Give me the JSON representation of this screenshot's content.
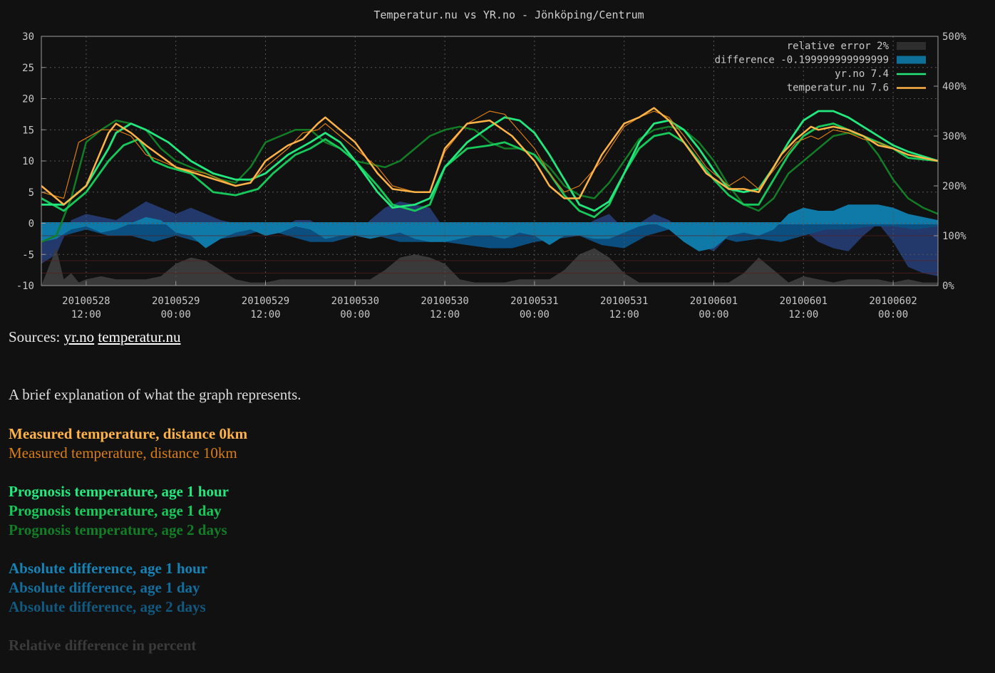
{
  "chart_data": {
    "type": "line",
    "title": "Temperatur.nu vs YR.no - Jönköping/Centrum",
    "y_left": {
      "min": -10,
      "max": 30,
      "ticks": [
        30,
        25,
        20,
        15,
        10,
        5,
        0,
        -5,
        -10
      ]
    },
    "y_right": {
      "min": 0,
      "max": 500,
      "ticks": [
        "500%",
        "400%",
        "300%",
        "200%",
        "100%",
        "0%"
      ]
    },
    "x_range_hours": [
      0,
      120
    ],
    "x_ticks": [
      {
        "date": "20100528",
        "time": "12:00"
      },
      {
        "date": "20100529",
        "time": "00:00"
      },
      {
        "date": "20100529",
        "time": "12:00"
      },
      {
        "date": "20100530",
        "time": "00:00"
      },
      {
        "date": "20100530",
        "time": "12:00"
      },
      {
        "date": "20100531",
        "time": "00:00"
      },
      {
        "date": "20100531",
        "time": "12:00"
      },
      {
        "date": "20100601",
        "time": "00:00"
      },
      {
        "date": "20100601",
        "time": "12:00"
      },
      {
        "date": "20100602",
        "time": "00:00"
      }
    ],
    "grid": true,
    "legend_position": "top-right",
    "legend": [
      {
        "label": "relative error 2%",
        "color": "#2e2e2e",
        "kind": "box"
      },
      {
        "label": "difference -0.199999999999999",
        "color": "#0e6f99",
        "kind": "box"
      },
      {
        "label": "yr.no 7.4",
        "color": "#22e87e",
        "kind": "line"
      },
      {
        "label": "temperatur.nu 7.6",
        "color": "#ffb347",
        "kind": "line"
      }
    ],
    "series": [
      {
        "name": "temperatur.nu",
        "color": "#ffb347",
        "width": 2.5,
        "x": [
          0,
          3,
          6,
          9,
          10,
          12,
          14,
          18,
          22,
          26,
          28,
          30,
          33,
          35,
          37,
          38,
          40,
          42,
          45,
          47,
          50,
          52,
          54,
          57,
          60,
          63,
          66,
          68,
          70,
          72,
          75,
          78,
          80,
          82,
          84,
          86,
          89,
          92,
          94,
          96,
          99,
          101,
          103,
          104,
          106,
          108,
          110,
          112,
          114,
          116,
          120
        ],
        "y": [
          6,
          3,
          6,
          14.5,
          16,
          14.5,
          12.5,
          9,
          7.5,
          6,
          6.5,
          10,
          12.5,
          13.5,
          16,
          17,
          15,
          13,
          8,
          5.5,
          5,
          5,
          12,
          16,
          16.5,
          14,
          10,
          6,
          4,
          4,
          11,
          16,
          17,
          18.5,
          16.5,
          13,
          8,
          5.5,
          5.5,
          5,
          11,
          13.5,
          15.5,
          15,
          15.5,
          15,
          14,
          12.5,
          12,
          11,
          10
        ]
      },
      {
        "name": "temperatur.nu, distance 10km",
        "color": "#d97e12",
        "width": 1.2,
        "x": [
          0,
          3,
          5,
          8,
          10,
          12,
          14,
          18,
          22,
          26,
          28,
          30,
          33,
          35,
          37,
          38,
          40,
          42,
          45,
          47,
          50,
          52,
          54,
          57,
          60,
          62,
          66,
          68,
          70,
          72,
          75,
          78,
          80,
          82,
          84,
          86,
          89,
          92,
          94,
          96,
          99,
          101,
          103,
          104,
          106,
          108,
          110,
          112,
          114,
          116,
          120
        ],
        "y": [
          5,
          4,
          13,
          15,
          15,
          14,
          11,
          9,
          8,
          6,
          6.5,
          9,
          12,
          14.5,
          15,
          16,
          14,
          12,
          9,
          6,
          5,
          5,
          11.5,
          16,
          18,
          17.5,
          12,
          8,
          5,
          6,
          10,
          15.5,
          17,
          18,
          17,
          14,
          9,
          6,
          7.5,
          5.5,
          10,
          13,
          14,
          13.5,
          15,
          14.5,
          13.5,
          13,
          12,
          11,
          10
        ]
      },
      {
        "name": "yr.no, age 1 hour",
        "color": "#22e87e",
        "width": 2.8,
        "x": [
          0,
          3,
          6,
          9,
          10,
          12,
          14,
          17,
          20,
          23,
          26,
          28,
          30,
          33,
          36,
          38,
          40,
          42,
          45,
          47,
          50,
          52,
          54,
          57,
          60,
          62,
          64,
          66,
          68,
          70,
          72,
          74,
          76,
          78,
          80,
          82,
          84,
          86,
          88,
          90,
          92,
          94,
          96,
          98,
          100,
          102,
          104,
          106,
          108,
          110,
          112,
          114,
          116,
          120
        ],
        "y": [
          3,
          3,
          6,
          12,
          14.5,
          16,
          15,
          13,
          10,
          8,
          7,
          7,
          8,
          11,
          13,
          14.5,
          13,
          10,
          5,
          2.5,
          3,
          4,
          9,
          13,
          15.5,
          17,
          16.5,
          14.5,
          11,
          7,
          3,
          2,
          3.5,
          8,
          13,
          16,
          16.5,
          15,
          12,
          8.5,
          5.5,
          5,
          5.5,
          9,
          13,
          16.5,
          18,
          18,
          17,
          15.5,
          14,
          12.5,
          11.5,
          10
        ]
      },
      {
        "name": "yr.no, age 1 day",
        "color": "#16c95a",
        "width": 2.8,
        "x": [
          0,
          3,
          6,
          9,
          11,
          13,
          15,
          17,
          20,
          23,
          26,
          29,
          31,
          34,
          36,
          38,
          40,
          42,
          45,
          47,
          50,
          52,
          54,
          57,
          60,
          62,
          64,
          66,
          68,
          70,
          72,
          74,
          76,
          78,
          80,
          82,
          84,
          86,
          88,
          90,
          92,
          94,
          96,
          98,
          100,
          102,
          104,
          106,
          108,
          110,
          112,
          114,
          116,
          120
        ],
        "y": [
          4,
          2,
          5,
          10,
          12.5,
          13.5,
          10,
          9,
          8,
          5,
          4.5,
          5.5,
          8,
          11,
          12,
          13.5,
          12,
          10,
          6,
          3,
          2,
          3,
          9,
          12,
          12.5,
          13,
          12,
          11,
          8,
          4.5,
          2,
          1,
          3,
          8,
          12,
          14,
          14.5,
          13,
          10,
          7,
          4.5,
          3,
          3,
          7,
          11,
          14,
          15.5,
          16,
          15,
          14,
          13,
          12,
          10.5,
          10
        ]
      },
      {
        "name": "yr.no, age 2 days",
        "color": "#127d26",
        "width": 2.5,
        "x": [
          0,
          2,
          4,
          6,
          8,
          10,
          12,
          14,
          16,
          18,
          20,
          22,
          24,
          26,
          28,
          30,
          32,
          34,
          36,
          38,
          40,
          42,
          44,
          46,
          48,
          50,
          52,
          54,
          56,
          58,
          60,
          62,
          64,
          66,
          68,
          70,
          72,
          74,
          76,
          78,
          80,
          82,
          84,
          86,
          88,
          90,
          92,
          94,
          96,
          98,
          100,
          102,
          104,
          106,
          108,
          110,
          112,
          114,
          116,
          118,
          120
        ],
        "y": [
          -3,
          -2,
          4,
          13,
          15,
          16.5,
          16,
          15,
          12,
          10,
          9,
          8,
          7,
          6.5,
          9,
          13,
          14,
          15,
          15,
          13,
          12,
          10,
          9.5,
          9,
          10,
          12,
          14,
          15,
          15.5,
          15,
          13,
          12,
          12,
          11,
          9,
          6,
          4.5,
          4,
          6.5,
          10,
          13.5,
          15,
          15.5,
          15,
          13,
          10,
          6,
          3,
          2,
          4,
          8,
          10,
          12,
          14,
          14.5,
          14,
          11,
          7,
          4,
          2.5,
          1.5
        ]
      }
    ],
    "areas": [
      {
        "name": "absolute difference, age 2 days",
        "color": "#24396b",
        "x": [
          0,
          2,
          4,
          6,
          8,
          10,
          12,
          14,
          16,
          18,
          20,
          22,
          24,
          26,
          28,
          30,
          32,
          34,
          36,
          38,
          40,
          42,
          44,
          46,
          48,
          50,
          52,
          54,
          56,
          58,
          60,
          62,
          64,
          66,
          68,
          70,
          72,
          74,
          76,
          78,
          80,
          82,
          84,
          86,
          88,
          90,
          92,
          94,
          96,
          98,
          100,
          102,
          104,
          106,
          108,
          110,
          112,
          114,
          116,
          118,
          120
        ],
        "y": [
          -6.5,
          -5,
          0.5,
          1.5,
          1,
          0.5,
          2,
          3.5,
          2.5,
          1.5,
          2.5,
          1.5,
          0.5,
          0,
          -1,
          -1.5,
          -1,
          0.5,
          0.5,
          -1,
          -1,
          -2,
          0.5,
          2.5,
          3.5,
          3,
          2.5,
          -1,
          -1.5,
          -1,
          -2.5,
          -2,
          -1.5,
          -3,
          -2.5,
          -1.5,
          -1,
          0.5,
          1.5,
          -1,
          0,
          1.5,
          0.5,
          -1.5,
          -3.5,
          -4.5,
          -2,
          -2,
          -2,
          -1.5,
          -1,
          -1,
          -3,
          -4,
          -4.5,
          -2,
          0,
          -3,
          -7,
          -8,
          -8.5
        ]
      },
      {
        "name": "absolute difference, age 1 day",
        "color": "#0b4f80",
        "x": [
          0,
          3,
          6,
          9,
          12,
          15,
          18,
          21,
          24,
          27,
          30,
          33,
          36,
          39,
          42,
          45,
          48,
          51,
          54,
          57,
          60,
          63,
          66,
          69,
          72,
          75,
          78,
          81,
          84,
          87,
          90,
          93,
          96,
          99,
          102,
          105,
          108,
          111,
          114,
          117,
          120
        ],
        "y": [
          -1,
          -2,
          -1,
          -2,
          -2,
          -3,
          -2,
          -3,
          -2.5,
          -2,
          -1,
          -2,
          -3,
          -3,
          -2,
          -2,
          -3,
          -3,
          -3,
          -3.5,
          -4,
          -4,
          -3,
          -2.5,
          -2,
          -3.5,
          -4,
          -2,
          -1,
          -1.5,
          -2,
          -3,
          -2.5,
          -3,
          -2,
          -1,
          -1,
          -0.5,
          -0.5,
          -1,
          -0.5
        ]
      },
      {
        "name": "absolute difference, age 1 hour",
        "color": "#0f7aa8",
        "x": [
          0,
          2,
          4,
          6,
          8,
          10,
          12,
          14,
          16,
          18,
          20,
          22,
          24,
          26,
          28,
          30,
          32,
          34,
          36,
          38,
          40,
          42,
          44,
          46,
          48,
          50,
          52,
          54,
          56,
          58,
          60,
          62,
          64,
          66,
          68,
          70,
          72,
          74,
          76,
          78,
          80,
          82,
          84,
          86,
          88,
          90,
          92,
          94,
          96,
          98,
          100,
          102,
          104,
          106,
          108,
          110,
          112,
          114,
          116,
          118,
          120
        ],
        "y": [
          -3,
          -2.5,
          -1,
          -0.5,
          -1.5,
          -1,
          0,
          1,
          0.5,
          -1.5,
          -2,
          -4,
          -2.5,
          -1.5,
          -1,
          -2,
          -1.5,
          -0.5,
          -1,
          -2.5,
          -2,
          -2,
          -2.5,
          -2,
          -1.5,
          -2.5,
          -3,
          -3,
          -2.5,
          -2,
          -2,
          -2.5,
          -1.5,
          -2,
          -3.5,
          -2,
          -2,
          -2.5,
          -2.5,
          -1.5,
          -0.5,
          0,
          -1,
          -3,
          -4.5,
          -4,
          -2,
          -1.5,
          -2,
          -1,
          1.5,
          2.5,
          2,
          2,
          3,
          3,
          3,
          2.5,
          1.5,
          1,
          0.5
        ]
      },
      {
        "name": "relative difference in percent",
        "color": "#3a3a3a",
        "x": [
          0,
          1,
          2,
          3,
          4,
          5,
          6,
          8,
          10,
          12,
          14,
          16,
          18,
          20,
          22,
          24,
          26,
          28,
          30,
          32,
          34,
          36,
          38,
          40,
          42,
          44,
          46,
          48,
          50,
          52,
          54,
          56,
          58,
          60,
          62,
          64,
          66,
          68,
          70,
          72,
          74,
          76,
          78,
          80,
          82,
          84,
          86,
          88,
          90,
          92,
          94,
          96,
          98,
          100,
          102,
          104,
          106,
          108,
          110,
          112,
          114,
          116,
          118,
          120
        ],
        "y": [
          -10,
          -7,
          -4,
          -9,
          -8,
          -9.5,
          -9,
          -8.5,
          -9,
          -9,
          -9,
          -8.5,
          -6.5,
          -5.5,
          -6,
          -7.5,
          -9,
          -9.5,
          -9.5,
          -9,
          -9,
          -9,
          -9,
          -9,
          -9,
          -9,
          -7.5,
          -5.5,
          -5,
          -5.5,
          -6.5,
          -9,
          -9.5,
          -9.5,
          -9.5,
          -9,
          -9,
          -9,
          -7.5,
          -5,
          -4,
          -5.5,
          -8,
          -9.5,
          -9.5,
          -9.5,
          -9.5,
          -9.5,
          -9.5,
          -9.5,
          -8,
          -5.5,
          -7.5,
          -9.5,
          -8.5,
          -9,
          -9.5,
          -9,
          -9,
          -9,
          -9.5,
          -9,
          -9.5,
          -9.5
        ]
      }
    ]
  },
  "sources": {
    "label": "Sources:",
    "link1": "yr.no",
    "link2": "temperatur.nu"
  },
  "explanation": {
    "intro": "A brief explanation of what the graph represents.",
    "measured_0km": "Measured temperature, distance 0km",
    "measured_10km": "Measured temperature, distance 10km",
    "prog_1h": "Prognosis temperature, age 1 hour",
    "prog_1d": "Prognosis temperature, age 1 day",
    "prog_2d": "Prognosis temperature, age 2 days",
    "abs_1h": "Absolute difference, age 1 hour",
    "abs_1d": "Absolute difference, age 1 day",
    "abs_2d": "Absolute difference, age 2 days",
    "relative": "Relative difference in percent"
  },
  "colors": {
    "measured_0km": "#ffb347",
    "measured_10km": "#d97e12",
    "prog_1h": "#22e87e",
    "prog_1d": "#16c95a",
    "prog_2d": "#127d26",
    "abs_1h": "#1583b5",
    "abs_1d": "#136e9e",
    "abs_2d": "#11597f",
    "relative": "#3a3a3a"
  }
}
